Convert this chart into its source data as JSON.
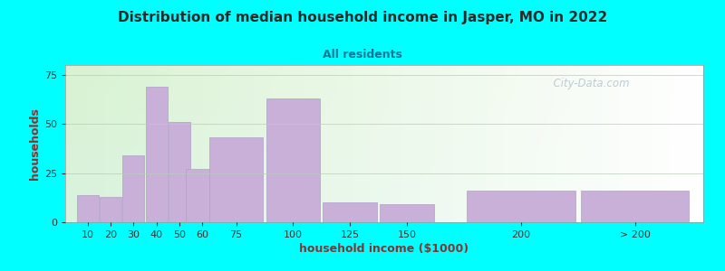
{
  "title": "Distribution of median household income in Jasper, MO in 2022",
  "subtitle": "All residents",
  "xlabel": "household income ($1000)",
  "ylabel": "households",
  "background_color": "#00FFFF",
  "bar_color": "#c8b0d8",
  "bar_edge_color": "#b0a0c8",
  "title_color": "#2a2a2a",
  "subtitle_color": "#007799",
  "axis_label_color": "#883333",
  "bar_categories": [
    "10",
    "20",
    "30",
    "40",
    "50",
    "60",
    "75",
    "100",
    "125",
    "150",
    "200",
    "> 200"
  ],
  "bar_values": [
    14,
    13,
    34,
    69,
    51,
    27,
    43,
    63,
    10,
    9,
    16,
    16
  ],
  "bar_positions": [
    10,
    20,
    30,
    40,
    50,
    60,
    75,
    100,
    125,
    150,
    200,
    250
  ],
  "bar_widths": [
    10,
    10,
    10,
    10,
    10,
    15,
    25,
    25,
    25,
    25,
    50,
    50
  ],
  "ylim": [
    0,
    80
  ],
  "yticks": [
    0,
    25,
    50,
    75
  ],
  "xlim": [
    0,
    280
  ],
  "xtick_positions": [
    10,
    20,
    30,
    40,
    50,
    60,
    75,
    100,
    125,
    150,
    200,
    250
  ],
  "watermark": "  City-Data.com"
}
